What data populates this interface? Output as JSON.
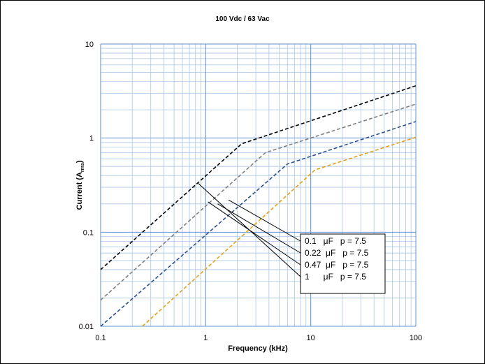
{
  "chart_data": {
    "type": "line",
    "title": "100 Vdc / 63 Vac",
    "xlabel": "Frequency (kHz)",
    "ylabel": {
      "main": "Current (A",
      "sub": "rms",
      "end": ")"
    },
    "x_scale": "log",
    "y_scale": "log",
    "xlim": [
      0.1,
      100
    ],
    "ylim": [
      0.01,
      10
    ],
    "x_ticks": [
      "0.1",
      "1",
      "10",
      "100"
    ],
    "y_ticks": [
      "0.01",
      "0.1",
      "1",
      "10"
    ],
    "grid": true,
    "series": [
      {
        "name": "1 μF p = 7.5",
        "color": "#000000",
        "points": [
          [
            0.1,
            0.04
          ],
          [
            2.2,
            0.87
          ],
          [
            100,
            3.6
          ]
        ]
      },
      {
        "name": "0.47 μF p = 7.5",
        "color": "#808080",
        "points": [
          [
            0.1,
            0.019
          ],
          [
            3.7,
            0.7
          ],
          [
            100,
            2.3
          ]
        ]
      },
      {
        "name": "0.22 μF p = 7.5",
        "color": "#2f4f8f",
        "points": [
          [
            0.1,
            0.01
          ],
          [
            6,
            0.53
          ],
          [
            100,
            1.5
          ]
        ]
      },
      {
        "name": "0.1 μF p = 7.5",
        "color": "#e3a21a",
        "points": [
          [
            0.25,
            0.01
          ],
          [
            11,
            0.46
          ],
          [
            100,
            1.02
          ]
        ]
      }
    ],
    "legend": {
      "placement": "inside-bottom-right",
      "entries": [
        "0.1   μF   p = 7.5",
        "0.22  μF   p = 7.5",
        "0.47  μF   p = 7.5",
        "1      μF   p = 7.5"
      ],
      "pointer_targets": [
        [
          1.65,
          0.22
        ],
        [
          1.3,
          0.2
        ],
        [
          1.05,
          0.21
        ],
        [
          0.85,
          0.33
        ]
      ]
    }
  }
}
